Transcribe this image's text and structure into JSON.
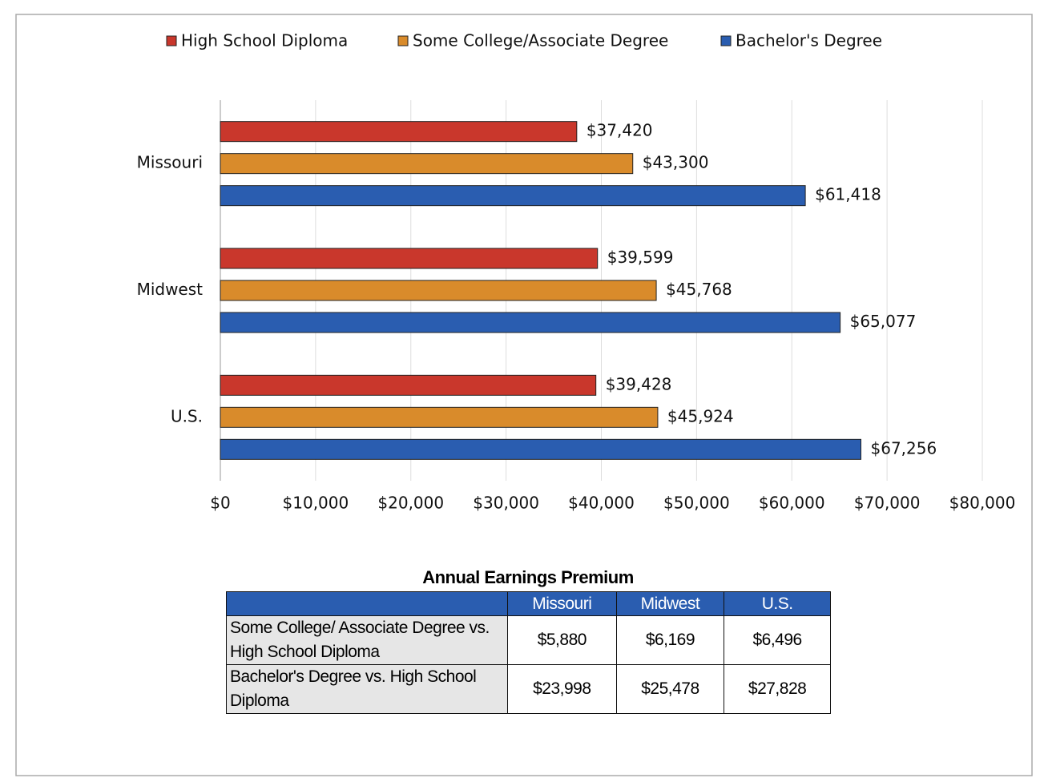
{
  "chart_data": {
    "type": "bar",
    "orientation": "horizontal",
    "categories": [
      "Missouri",
      "Midwest",
      "U.S."
    ],
    "series": [
      {
        "name": "High School Diploma",
        "color": "#c9372c",
        "values": [
          37420,
          39599,
          39428
        ],
        "value_labels": [
          "$37,420",
          "$39,599",
          "$39,428"
        ]
      },
      {
        "name": "Some College/Associate Degree",
        "color": "#d98b2b",
        "values": [
          43300,
          45768,
          45924
        ],
        "value_labels": [
          "$43,300",
          "$45,768",
          "$45,924"
        ]
      },
      {
        "name": "Bachelor's Degree",
        "color": "#2a5db0",
        "values": [
          61418,
          65077,
          67256
        ],
        "value_labels": [
          "$61,418",
          "$65,077",
          "$67,256"
        ]
      }
    ],
    "xlim": [
      0,
      80000
    ],
    "xticks": [
      {
        "value": 0,
        "label": "$0"
      },
      {
        "value": 10000,
        "label": "$10,000"
      },
      {
        "value": 20000,
        "label": "$20,000"
      },
      {
        "value": 30000,
        "label": "$30,000"
      },
      {
        "value": 40000,
        "label": "$40,000"
      },
      {
        "value": 50000,
        "label": "$50,000"
      },
      {
        "value": 60000,
        "label": "$60,000"
      },
      {
        "value": 70000,
        "label": "$70,000"
      },
      {
        "value": 80000,
        "label": "$80,000"
      }
    ],
    "grid": true,
    "legend": "top"
  },
  "table": {
    "title": "Annual Earnings Premium",
    "columns": [
      "Missouri",
      "Midwest",
      "U.S."
    ],
    "rows": [
      [
        "Some College/ Associate Degree vs. High School Diploma",
        "$5,880",
        "$6,169",
        "$6,496"
      ],
      [
        "Bachelor's Degree vs. High School Diploma",
        "$23,998",
        "$25,478",
        "$27,828"
      ]
    ]
  }
}
